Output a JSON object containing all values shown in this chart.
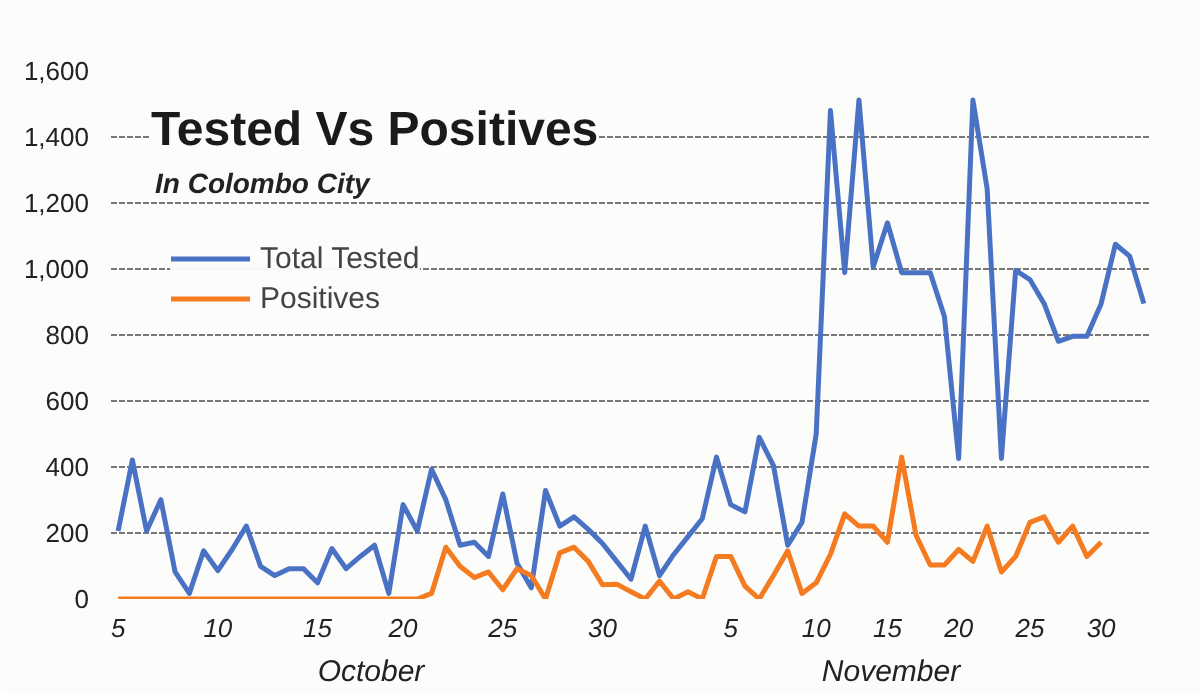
{
  "chart_data": {
    "type": "line",
    "title": "Tested Vs Positives",
    "subtitle": "In Colombo City",
    "categories": [
      "5",
      null,
      null,
      null,
      null,
      null,
      null,
      "10",
      null,
      null,
      null,
      null,
      null,
      null,
      "15",
      null,
      null,
      null,
      null,
      null,
      "20",
      null,
      null,
      null,
      null,
      null,
      null,
      "25",
      null,
      null,
      null,
      null,
      null,
      null,
      "30",
      null,
      null,
      null,
      null,
      null,
      null,
      null,
      null,
      "5",
      null,
      null,
      null,
      null,
      null,
      "10",
      null,
      null,
      null,
      null,
      "15",
      null,
      null,
      null,
      null,
      "20",
      null,
      null,
      null,
      null,
      "25",
      null,
      null,
      null,
      null,
      "30",
      null,
      null,
      null
    ],
    "series": [
      {
        "name": "Total Tested",
        "color": "#4a72c4",
        "values": [
          206,
          421,
          206,
          301,
          82,
          17,
          146,
          86,
          150,
          221,
          99,
          71,
          92,
          92,
          49,
          153,
          92,
          129,
          163,
          17,
          286,
          206,
          393,
          301,
          163,
          172,
          129,
          318,
          108,
          34,
          329,
          221,
          249,
          211,
          168,
          114,
          60,
          221,
          71,
          135,
          189,
          243,
          430,
          286,
          264,
          490,
          404,
          163,
          232,
          500,
          1480,
          989,
          1512,
          1006,
          1140,
          989,
          989,
          989,
          856,
          426,
          1512,
          1243,
          426,
          996,
          968,
          895,
          781,
          796,
          796,
          895,
          1075,
          1039,
          895
        ]
      },
      {
        "name": "Positives",
        "color": "#f47b20",
        "values": [
          0,
          0,
          0,
          0,
          0,
          0,
          0,
          0,
          0,
          0,
          0,
          0,
          0,
          0,
          0,
          0,
          0,
          0,
          0,
          0,
          0,
          0,
          17,
          157,
          99,
          65,
          82,
          28,
          92,
          71,
          0,
          140,
          157,
          114,
          43,
          45,
          22,
          0,
          54,
          0,
          22,
          0,
          129,
          129,
          39,
          0,
          71,
          146,
          17,
          49,
          135,
          258,
          221,
          221,
          172,
          430,
          194,
          103,
          103,
          150,
          114,
          221,
          82,
          129,
          232,
          249,
          172,
          221,
          129,
          172,
          null,
          null,
          null
        ]
      }
    ],
    "ylim": [
      0,
      1600
    ],
    "yticks": [
      {
        "value": 0,
        "label": "0"
      },
      {
        "value": 200,
        "label": "200"
      },
      {
        "value": 400,
        "label": "400"
      },
      {
        "value": 600,
        "label": "600"
      },
      {
        "value": 800,
        "label": "800"
      },
      {
        "value": 1000,
        "label": "1,000"
      },
      {
        "value": 1200,
        "label": "1,200"
      },
      {
        "value": 1400,
        "label": "1,400"
      },
      {
        "value": 1600,
        "label": "1,600"
      }
    ],
    "grid": "y",
    "legend": "top left",
    "marker": "none",
    "line_style": "solid",
    "annotations": [
      "October",
      "November"
    ]
  }
}
